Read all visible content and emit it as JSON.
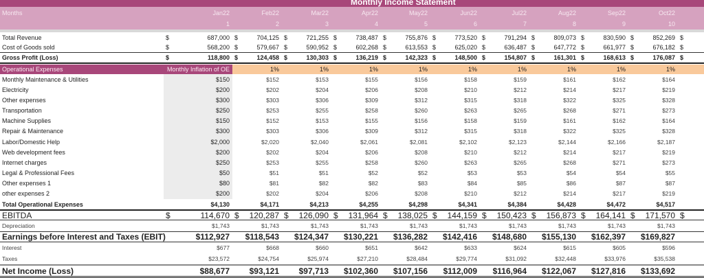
{
  "title": "Monthly Income Statement",
  "colors": {
    "title_band": "#a8477a",
    "header": "#d6a2bf",
    "inflation_band": "#f9c99b",
    "input_column": "#ececec"
  },
  "header": {
    "months_label": "Months",
    "months": [
      "Jan22",
      "Feb22",
      "Mar22",
      "Apr22",
      "May22",
      "Jun22",
      "Jul22",
      "Aug22",
      "Sep22",
      "Oct22"
    ],
    "numbers": [
      "1",
      "2",
      "3",
      "4",
      "5",
      "6",
      "7",
      "8",
      "9",
      "10"
    ]
  },
  "currency": "$",
  "revenue": {
    "label": "Total Revenue",
    "values": [
      "687,000",
      "704,125",
      "721,255",
      "738,487",
      "755,876",
      "773,520",
      "791,294",
      "809,073",
      "830,590",
      "852,269"
    ]
  },
  "cogs": {
    "label": "Cost of Goods sold",
    "values": [
      "568,200",
      "579,667",
      "590,952",
      "602,268",
      "613,553",
      "625,020",
      "636,487",
      "647,772",
      "661,977",
      "676,182"
    ]
  },
  "gross": {
    "label": "Gross Profit (Loss)",
    "values": [
      "118,800",
      "124,458",
      "130,303",
      "136,219",
      "142,323",
      "148,500",
      "154,807",
      "161,301",
      "168,613",
      "176,087"
    ]
  },
  "opex": {
    "label": "Operational Expenses",
    "inflation_label": "Monthly Inflation of OE",
    "inflation": [
      "1%",
      "1%",
      "1%",
      "1%",
      "1%",
      "1%",
      "1%",
      "1%",
      "1%"
    ],
    "items": [
      {
        "label": "Monthly Maintenance & Utilities",
        "values": [
          "$150",
          "$152",
          "$153",
          "$155",
          "$156",
          "$158",
          "$159",
          "$161",
          "$162",
          "$164"
        ]
      },
      {
        "label": "Electricity",
        "values": [
          "$200",
          "$202",
          "$204",
          "$206",
          "$208",
          "$210",
          "$212",
          "$214",
          "$217",
          "$219"
        ]
      },
      {
        "label": "Other expenses",
        "values": [
          "$300",
          "$303",
          "$306",
          "$309",
          "$312",
          "$315",
          "$318",
          "$322",
          "$325",
          "$328"
        ]
      },
      {
        "label": "Transportation",
        "values": [
          "$250",
          "$253",
          "$255",
          "$258",
          "$260",
          "$263",
          "$265",
          "$268",
          "$271",
          "$273"
        ]
      },
      {
        "label": "Machine Supplies",
        "values": [
          "$150",
          "$152",
          "$153",
          "$155",
          "$156",
          "$158",
          "$159",
          "$161",
          "$162",
          "$164"
        ]
      },
      {
        "label": "Repair & Maintenance",
        "values": [
          "$300",
          "$303",
          "$306",
          "$309",
          "$312",
          "$315",
          "$318",
          "$322",
          "$325",
          "$328"
        ]
      },
      {
        "label": "Labor/Domestic Help",
        "values": [
          "$2,000",
          "$2,020",
          "$2,040",
          "$2,061",
          "$2,081",
          "$2,102",
          "$2,123",
          "$2,144",
          "$2,166",
          "$2,187"
        ]
      },
      {
        "label": "Web development fees",
        "values": [
          "$200",
          "$202",
          "$204",
          "$206",
          "$208",
          "$210",
          "$212",
          "$214",
          "$217",
          "$219"
        ]
      },
      {
        "label": "Internet charges",
        "values": [
          "$250",
          "$253",
          "$255",
          "$258",
          "$260",
          "$263",
          "$265",
          "$268",
          "$271",
          "$273"
        ]
      },
      {
        "label": "Legal & Professional Fees",
        "values": [
          "$50",
          "$51",
          "$51",
          "$52",
          "$52",
          "$53",
          "$53",
          "$54",
          "$54",
          "$55"
        ]
      },
      {
        "label": "Other expenses 1",
        "values": [
          "$80",
          "$81",
          "$82",
          "$82",
          "$83",
          "$84",
          "$85",
          "$86",
          "$87",
          "$87"
        ]
      },
      {
        "label": "other expenses 2",
        "values": [
          "$200",
          "$202",
          "$204",
          "$206",
          "$208",
          "$210",
          "$212",
          "$214",
          "$217",
          "$219"
        ]
      }
    ],
    "total": {
      "label": "Total Operational Expenses",
      "values": [
        "$4,130",
        "$4,171",
        "$4,213",
        "$4,255",
        "$4,298",
        "$4,341",
        "$4,384",
        "$4,428",
        "$4,472",
        "$4,517"
      ]
    }
  },
  "ebitda": {
    "label": "EBITDA",
    "values": [
      "114,670",
      "120,287",
      "126,090",
      "131,964",
      "138,025",
      "144,159",
      "150,423",
      "156,873",
      "164,141",
      "171,570"
    ]
  },
  "depreciation": {
    "label": "Depreciation",
    "values": [
      "$1,743",
      "$1,743",
      "$1,743",
      "$1,743",
      "$1,743",
      "$1,743",
      "$1,743",
      "$1,743",
      "$1,743",
      "$1,743"
    ]
  },
  "ebit": {
    "label": "Earnings before Interest and Taxes (EBIT)",
    "values": [
      "$112,927",
      "$118,543",
      "$124,347",
      "$130,221",
      "$136,282",
      "$142,416",
      "$148,680",
      "$155,130",
      "$162,397",
      "$169,827"
    ]
  },
  "interest": {
    "label": "Interest",
    "values": [
      "$677",
      "$668",
      "$660",
      "$651",
      "$642",
      "$633",
      "$624",
      "$615",
      "$605",
      "$596"
    ]
  },
  "taxes": {
    "label": "Taxes",
    "values": [
      "$23,572",
      "$24,754",
      "$25,974",
      "$27,210",
      "$28,484",
      "$29,774",
      "$31,092",
      "$32,448",
      "$33,976",
      "$35,538"
    ]
  },
  "net": {
    "label": "Net Income (Loss)",
    "values": [
      "$88,677",
      "$93,121",
      "$97,713",
      "$102,360",
      "$107,156",
      "$112,009",
      "$116,964",
      "$122,067",
      "$127,816",
      "$133,692"
    ]
  }
}
